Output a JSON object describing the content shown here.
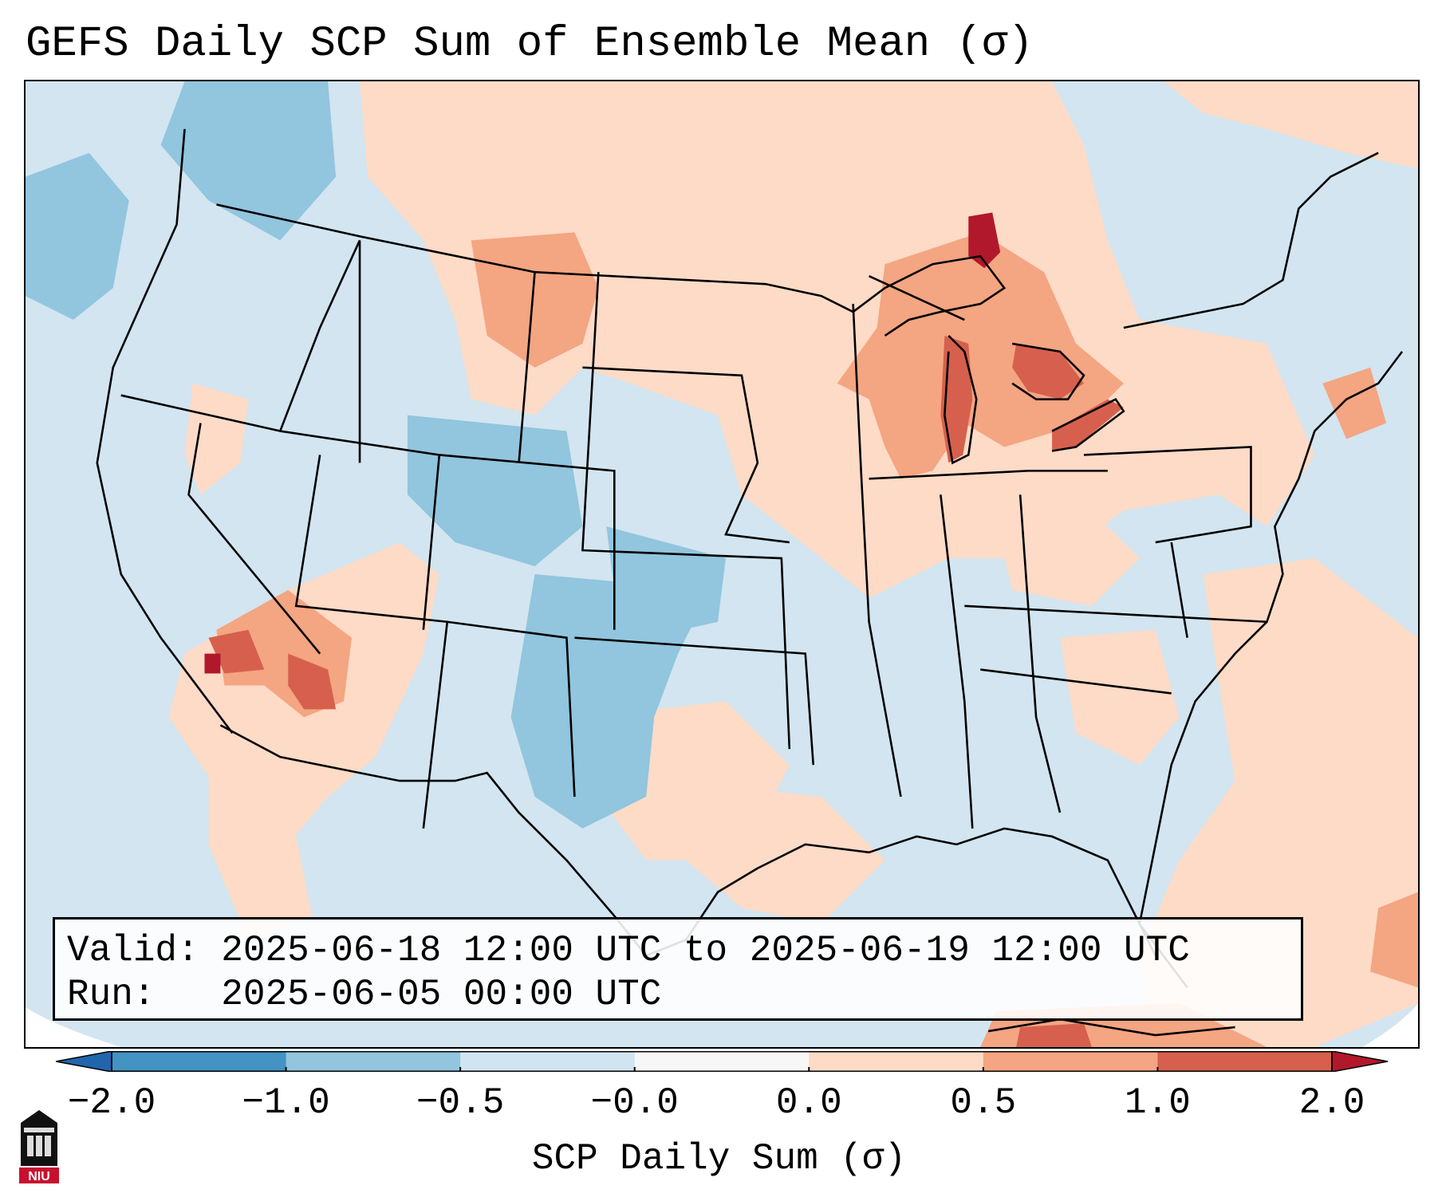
{
  "title": "GEFS Daily SCP Sum of Ensemble Mean (σ)",
  "info": {
    "valid_label": "Valid:",
    "valid_value": "2025-06-18 12:00 UTC to 2025-06-19 12:00 UTC",
    "run_label": "Run:",
    "run_value": "2025-06-05 00:00 UTC"
  },
  "colorbar": {
    "label": "SCP Daily Sum (σ)",
    "ticks": [
      "−2.0",
      "−1.0",
      "−0.5",
      "−0.0",
      "0.0",
      "0.5",
      "1.0",
      "2.0"
    ],
    "bins": [
      "#4393c3",
      "#92c5de",
      "#d1e5f0",
      "#f7f7f7",
      "#fddbc7",
      "#f4a582",
      "#d6604d"
    ],
    "extend_low": "#2166ac",
    "extend_high": "#b2182b"
  },
  "logo": {
    "text": "NIU"
  },
  "map": {
    "ocean_color": "#d2e5f0",
    "anomaly_regions": [
      {
        "name": "upper-midwest-positive",
        "level": 0.5
      },
      {
        "name": "great-lakes-positive",
        "level": 1.0
      },
      {
        "name": "lake-michigan-maximum",
        "level": 2.0
      },
      {
        "name": "desert-southwest-positive",
        "level": 1.0
      },
      {
        "name": "west-texas-negative",
        "level": -1.0
      },
      {
        "name": "colorado-negative",
        "level": -1.0
      },
      {
        "name": "pacific-northwest-negative",
        "level": -1.0
      },
      {
        "name": "atlantic-positive",
        "level": 0.5
      },
      {
        "name": "gulf-positive",
        "level": 0.5
      },
      {
        "name": "new-england-positive",
        "level": 1.0
      }
    ]
  }
}
